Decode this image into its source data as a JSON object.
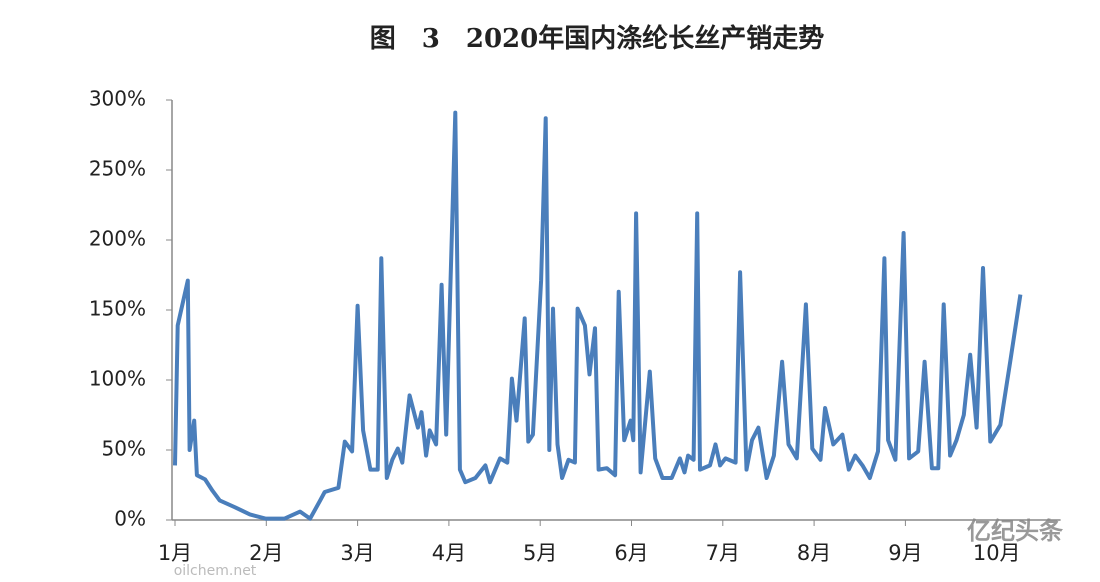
{
  "chart_data": {
    "type": "line",
    "title": "图　3　2020年国内涤纶长丝产销走势",
    "x": [
      1.0,
      1.03,
      1.14,
      1.16,
      1.21,
      1.24,
      1.33,
      1.41,
      1.49,
      1.66,
      1.82,
      1.99,
      2.2,
      2.37,
      2.48,
      2.59,
      2.64,
      2.79,
      2.86,
      2.94,
      3.0,
      3.06,
      3.14,
      3.22,
      3.26,
      3.32,
      3.38,
      3.44,
      3.49,
      3.57,
      3.66,
      3.7,
      3.75,
      3.79,
      3.86,
      3.92,
      3.97,
      4.07,
      4.12,
      4.18,
      4.29,
      4.4,
      4.45,
      4.56,
      4.64,
      4.69,
      4.74,
      4.83,
      4.87,
      4.92,
      5.01,
      5.06,
      5.1,
      5.14,
      5.19,
      5.24,
      5.31,
      5.38,
      5.41,
      5.49,
      5.54,
      5.6,
      5.64,
      5.73,
      5.82,
      5.86,
      5.92,
      5.99,
      6.02,
      6.05,
      6.1,
      6.2,
      6.26,
      6.34,
      6.44,
      6.53,
      6.58,
      6.62,
      6.68,
      6.72,
      6.75,
      6.86,
      6.92,
      6.97,
      7.03,
      7.14,
      7.19,
      7.26,
      7.32,
      7.39,
      7.48,
      7.56,
      7.65,
      7.72,
      7.81,
      7.91,
      7.98,
      8.07,
      8.12,
      8.21,
      8.31,
      8.38,
      8.45,
      8.53,
      8.61,
      8.7,
      8.77,
      8.81,
      8.89,
      8.98,
      9.04,
      9.14,
      9.21,
      9.29,
      9.36,
      9.42,
      9.49,
      9.56,
      9.64,
      9.71,
      9.78,
      9.85,
      9.93,
      10.04,
      10.15,
      10.26
    ],
    "series": [
      {
        "color": "#4a7ebb",
        "values": [
          39,
          139,
          171,
          50,
          71,
          32,
          29,
          21,
          14,
          9,
          4,
          1,
          1,
          6,
          1,
          14,
          20,
          23,
          56,
          49,
          153,
          64,
          36,
          36,
          187,
          30,
          43,
          51,
          41,
          89,
          66,
          77,
          46,
          64,
          54,
          168,
          61,
          291,
          36,
          27,
          30,
          39,
          27,
          44,
          41,
          101,
          71,
          144,
          56,
          61,
          171,
          287,
          50,
          151,
          54,
          30,
          43,
          41,
          151,
          139,
          104,
          137,
          36,
          37,
          32,
          163,
          57,
          71,
          57,
          219,
          34,
          106,
          44,
          30,
          30,
          44,
          34,
          46,
          43,
          219,
          36,
          39,
          54,
          39,
          44,
          41,
          177,
          36,
          57,
          66,
          30,
          46,
          113,
          54,
          44,
          154,
          51,
          43,
          80,
          54,
          61,
          36,
          46,
          39,
          30,
          49,
          187,
          57,
          43,
          205,
          44,
          49,
          113,
          37,
          37,
          154,
          46,
          57,
          75,
          118,
          66,
          180,
          56,
          68,
          114,
          161
        ]
      }
    ],
    "xlim": [
      1,
      10.7
    ],
    "xticks": [
      {
        "value": 1,
        "label": "1月"
      },
      {
        "value": 2,
        "label": "2月"
      },
      {
        "value": 3,
        "label": "3月"
      },
      {
        "value": 4,
        "label": "4月"
      },
      {
        "value": 5,
        "label": "5月"
      },
      {
        "value": 6,
        "label": "6月"
      },
      {
        "value": 7,
        "label": "7月"
      },
      {
        "value": 8,
        "label": "8月"
      },
      {
        "value": 9,
        "label": "9月"
      },
      {
        "value": 10,
        "label": "10月"
      }
    ],
    "ylim": [
      0,
      300
    ],
    "yticks": [
      {
        "value": 0,
        "label": "0%"
      },
      {
        "value": 50,
        "label": "50%"
      },
      {
        "value": 100,
        "label": "100%"
      },
      {
        "value": 150,
        "label": "150%"
      },
      {
        "value": 200,
        "label": "200%"
      },
      {
        "value": 250,
        "label": "250%"
      },
      {
        "value": 300,
        "label": "300%"
      }
    ],
    "watermark": [
      "oilchem.net",
      "亿纪头条"
    ]
  }
}
